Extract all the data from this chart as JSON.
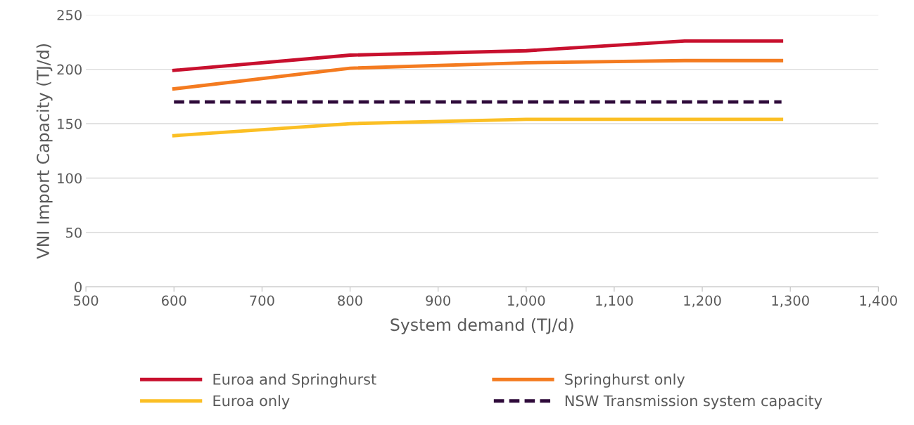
{
  "chart_data": {
    "type": "line",
    "xlabel": "System demand (TJ/d)",
    "ylabel": "VNI Import Capacity (TJ/d)",
    "xlim": [
      500,
      1400
    ],
    "xticks": [
      500,
      600,
      700,
      800,
      900,
      {
        "value": 1000,
        "label": "1,000"
      },
      {
        "value": 1100,
        "label": "1,100"
      },
      {
        "value": 1200,
        "label": "1,200"
      },
      {
        "value": 1300,
        "label": "1,300"
      },
      {
        "value": 1400,
        "label": "1,400"
      }
    ],
    "ylim": [
      0,
      250
    ],
    "yticks": [
      0,
      50,
      100,
      150,
      200,
      250
    ],
    "grid": "y",
    "legend": "bottom",
    "series": [
      {
        "name": "Euroa and Springhurst",
        "color": "#c8102e",
        "x": [
          600,
          800,
          1000,
          1180,
          1290
        ],
        "values": [
          199,
          213,
          217,
          226,
          226
        ]
      },
      {
        "name": "Euroa only",
        "color": "#fbbf24",
        "x": [
          600,
          800,
          1000,
          1180,
          1290
        ],
        "values": [
          139,
          150,
          154,
          154,
          154
        ]
      },
      {
        "name": "Springhurst only",
        "color": "#f47b20",
        "x": [
          600,
          800,
          1000,
          1180,
          1290
        ],
        "values": [
          182,
          201,
          206,
          208,
          208
        ]
      },
      {
        "name": "NSW Transmission system capacity",
        "color": "#2e0a3a",
        "line_style": "dashed",
        "x": [
          600,
          1290
        ],
        "values": [
          170,
          170
        ]
      }
    ]
  }
}
